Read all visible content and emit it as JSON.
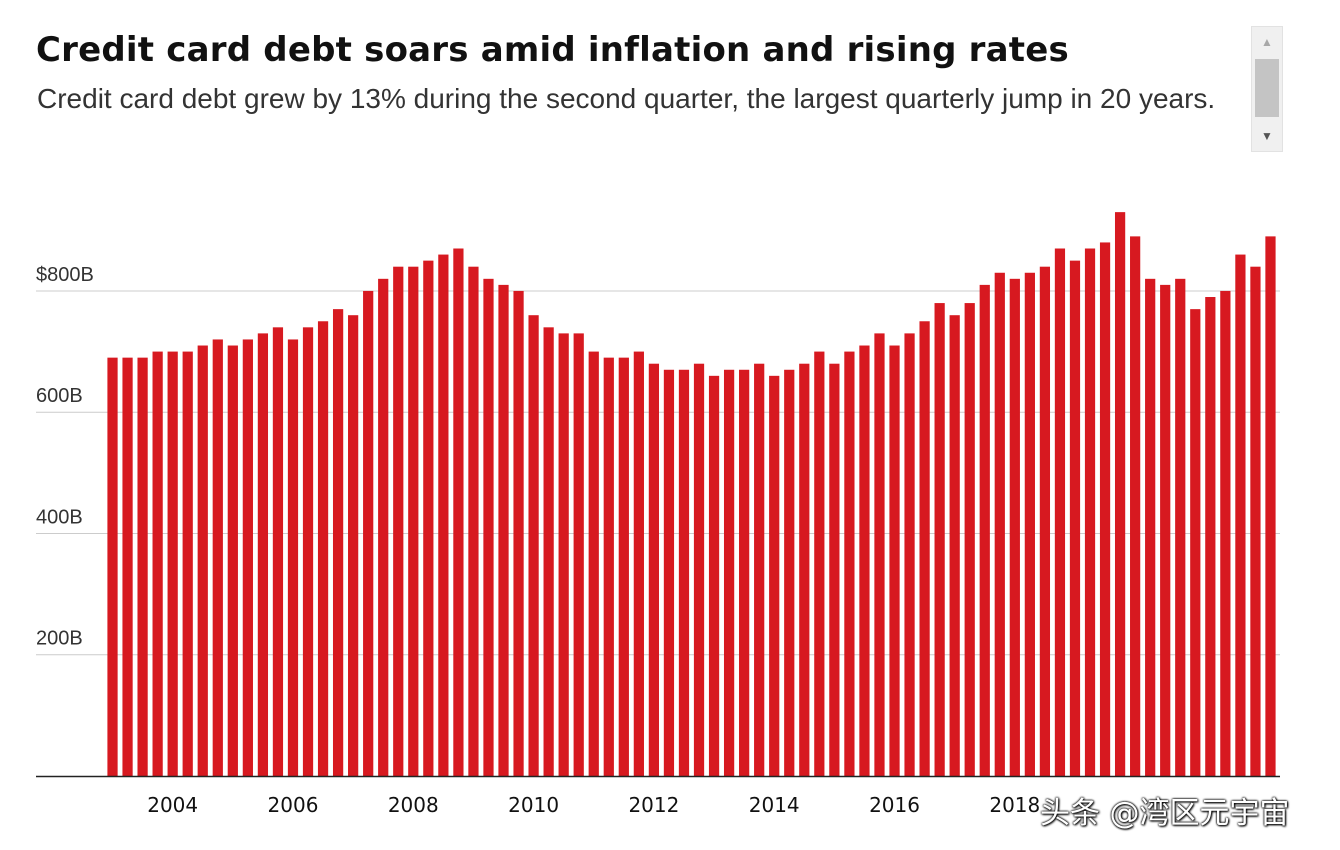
{
  "title": "Credit card debt soars amid inflation and rising rates",
  "subtitle": "Credit card debt grew by 13% during the second quarter, the largest quarterly jump in 20 years.",
  "watermark": "头条 @湾区元宇宙",
  "colors": {
    "bar": "#d71920",
    "grid": "#cccccc",
    "axis": "#222222",
    "text": "#333333"
  },
  "icons": {
    "scroll_up": "scroll-up-arrow-icon",
    "scroll_down": "scroll-down-arrow-icon"
  },
  "chart_data": {
    "type": "bar",
    "ylim": [
      0,
      950
    ],
    "yticks": [
      {
        "value": 200,
        "label": "200B"
      },
      {
        "value": 400,
        "label": "400B"
      },
      {
        "value": 600,
        "label": "600B"
      },
      {
        "value": 800,
        "label": "$800B"
      }
    ],
    "xticks": [
      "2004",
      "2006",
      "2008",
      "2010",
      "2012",
      "2014",
      "2016",
      "2018"
    ],
    "grid": true,
    "values": [
      690,
      690,
      690,
      700,
      700,
      700,
      710,
      720,
      710,
      720,
      730,
      740,
      720,
      740,
      750,
      770,
      760,
      800,
      820,
      840,
      840,
      850,
      860,
      870,
      840,
      820,
      810,
      800,
      760,
      740,
      730,
      730,
      700,
      690,
      690,
      700,
      680,
      670,
      670,
      680,
      660,
      670,
      670,
      680,
      660,
      670,
      680,
      700,
      680,
      700,
      710,
      730,
      710,
      730,
      750,
      780,
      760,
      780,
      810,
      830,
      820,
      830,
      840,
      870,
      850,
      870,
      880,
      930,
      890,
      820,
      810,
      820,
      770,
      790,
      800,
      860,
      840,
      890
    ]
  }
}
